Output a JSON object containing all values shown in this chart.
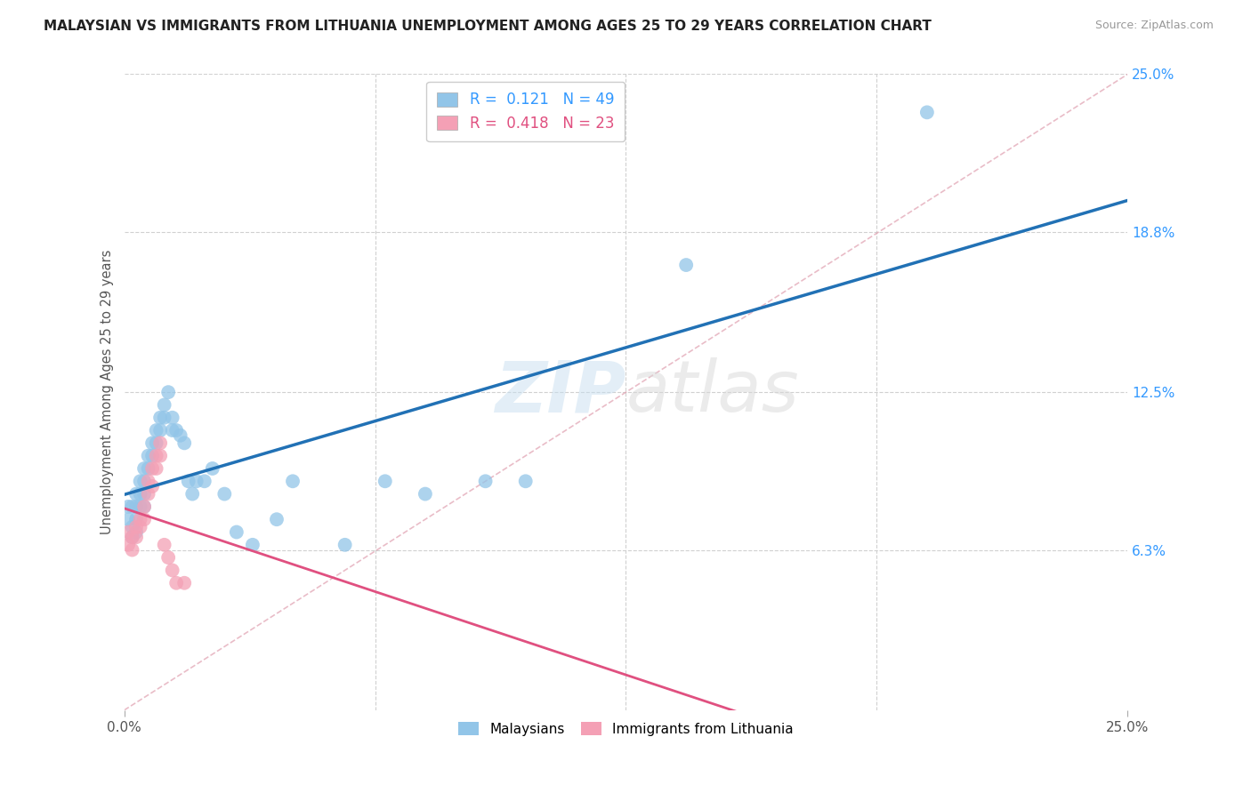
{
  "title": "MALAYSIAN VS IMMIGRANTS FROM LITHUANIA UNEMPLOYMENT AMONG AGES 25 TO 29 YEARS CORRELATION CHART",
  "source": "Source: ZipAtlas.com",
  "ylabel": "Unemployment Among Ages 25 to 29 years",
  "xlim": [
    0.0,
    0.25
  ],
  "ylim": [
    0.0,
    0.25
  ],
  "ytick_labels_right": [
    "25.0%",
    "18.8%",
    "12.5%",
    "6.3%"
  ],
  "ytick_vals_right": [
    0.25,
    0.188,
    0.125,
    0.063
  ],
  "watermark": "ZIPatlas",
  "blue_color": "#92c5e8",
  "pink_color": "#f4a0b5",
  "blue_line_color": "#2171b5",
  "pink_line_color": "#e05080",
  "malaysians_x": [
    0.001,
    0.001,
    0.002,
    0.002,
    0.002,
    0.003,
    0.003,
    0.003,
    0.003,
    0.004,
    0.004,
    0.004,
    0.005,
    0.005,
    0.005,
    0.005,
    0.006,
    0.006,
    0.007,
    0.007,
    0.008,
    0.008,
    0.009,
    0.009,
    0.01,
    0.01,
    0.011,
    0.012,
    0.012,
    0.013,
    0.014,
    0.015,
    0.016,
    0.017,
    0.018,
    0.02,
    0.022,
    0.025,
    0.028,
    0.032,
    0.038,
    0.042,
    0.055,
    0.065,
    0.075,
    0.09,
    0.1,
    0.14,
    0.2
  ],
  "malaysians_y": [
    0.08,
    0.075,
    0.08,
    0.072,
    0.068,
    0.085,
    0.08,
    0.075,
    0.07,
    0.09,
    0.085,
    0.08,
    0.095,
    0.09,
    0.085,
    0.08,
    0.1,
    0.095,
    0.105,
    0.1,
    0.11,
    0.105,
    0.115,
    0.11,
    0.12,
    0.115,
    0.125,
    0.115,
    0.11,
    0.11,
    0.108,
    0.105,
    0.09,
    0.085,
    0.09,
    0.09,
    0.095,
    0.085,
    0.07,
    0.065,
    0.075,
    0.09,
    0.065,
    0.09,
    0.085,
    0.09,
    0.09,
    0.175,
    0.235
  ],
  "lithuania_x": [
    0.001,
    0.001,
    0.002,
    0.002,
    0.003,
    0.003,
    0.004,
    0.004,
    0.005,
    0.005,
    0.006,
    0.006,
    0.007,
    0.007,
    0.008,
    0.008,
    0.009,
    0.009,
    0.01,
    0.011,
    0.012,
    0.013,
    0.015
  ],
  "lithuania_y": [
    0.07,
    0.065,
    0.068,
    0.063,
    0.072,
    0.068,
    0.075,
    0.072,
    0.08,
    0.075,
    0.09,
    0.085,
    0.095,
    0.088,
    0.1,
    0.095,
    0.1,
    0.105,
    0.065,
    0.06,
    0.055,
    0.05,
    0.05
  ],
  "blue_R": 0.121,
  "blue_N": 49,
  "pink_R": 0.418,
  "pink_N": 23
}
